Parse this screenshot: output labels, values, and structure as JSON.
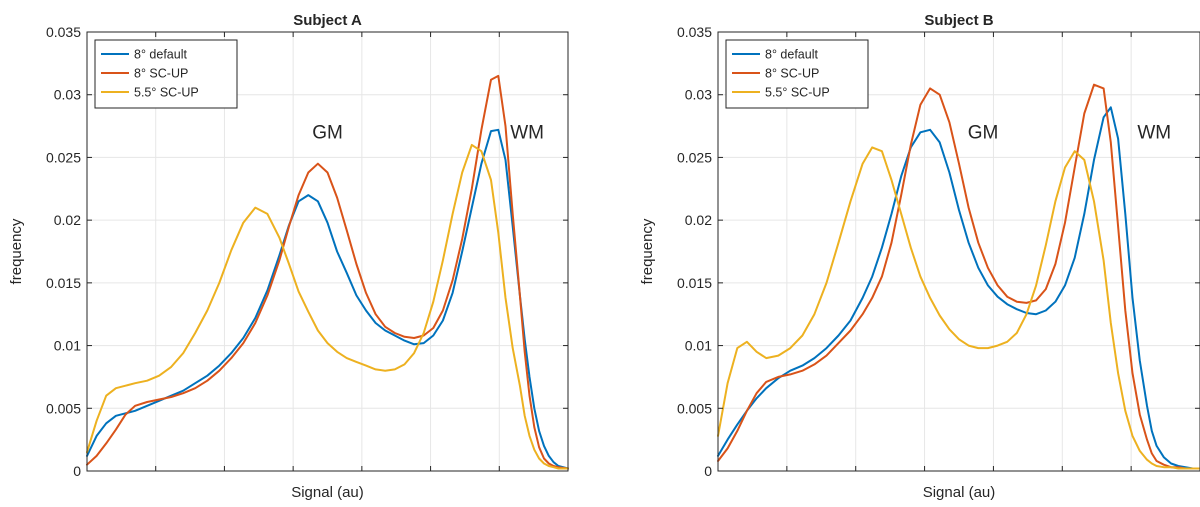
{
  "chart_data": [
    {
      "type": "line",
      "title": "Subject A",
      "xlabel": "Signal (au)",
      "ylabel": "frequency",
      "ylim": [
        0,
        0.035
      ],
      "xlim": [
        0,
        1
      ],
      "yticks": [
        "0",
        "0.005",
        "0.01",
        "0.015",
        "0.02",
        "0.025",
        "0.03",
        "0.035"
      ],
      "x_tick_labels": "none",
      "grid": true,
      "legend_placement": "top-left",
      "annotations": [
        {
          "text": "GM",
          "x": 0.5,
          "y": 0.0265
        },
        {
          "text": "WM",
          "x": 0.915,
          "y": 0.0265
        }
      ],
      "x": [
        0,
        0.02,
        0.04,
        0.06,
        0.08,
        0.1,
        0.125,
        0.15,
        0.175,
        0.2,
        0.225,
        0.25,
        0.275,
        0.3,
        0.325,
        0.35,
        0.375,
        0.4,
        0.42,
        0.44,
        0.46,
        0.48,
        0.5,
        0.52,
        0.54,
        0.56,
        0.58,
        0.6,
        0.62,
        0.64,
        0.66,
        0.68,
        0.7,
        0.72,
        0.74,
        0.76,
        0.78,
        0.8,
        0.82,
        0.84,
        0.855,
        0.87,
        0.885,
        0.9,
        0.91,
        0.92,
        0.93,
        0.94,
        0.95,
        0.96,
        0.97,
        0.98,
        1.0
      ],
      "series": [
        {
          "name": "8° default",
          "color": "#0072BD",
          "values": [
            0.0012,
            0.0028,
            0.0038,
            0.0044,
            0.0046,
            0.0048,
            0.0052,
            0.0056,
            0.006,
            0.0064,
            0.007,
            0.0076,
            0.0084,
            0.0094,
            0.0106,
            0.0122,
            0.0144,
            0.0172,
            0.0196,
            0.0215,
            0.022,
            0.0215,
            0.0198,
            0.0175,
            0.0158,
            0.014,
            0.0128,
            0.0118,
            0.0112,
            0.0108,
            0.0104,
            0.0101,
            0.0102,
            0.0108,
            0.012,
            0.0142,
            0.0175,
            0.021,
            0.0245,
            0.0271,
            0.0272,
            0.0248,
            0.0195,
            0.014,
            0.0105,
            0.0075,
            0.005,
            0.0032,
            0.002,
            0.0012,
            0.0007,
            0.0004,
            0.0002
          ]
        },
        {
          "name": "8° SC-UP",
          "color": "#D95319",
          "values": [
            0.0005,
            0.0012,
            0.0022,
            0.0033,
            0.0045,
            0.0052,
            0.0055,
            0.0057,
            0.0059,
            0.0062,
            0.0066,
            0.0072,
            0.008,
            0.009,
            0.0102,
            0.0118,
            0.014,
            0.0168,
            0.0195,
            0.022,
            0.0238,
            0.0245,
            0.0238,
            0.0218,
            0.0192,
            0.0165,
            0.0142,
            0.0125,
            0.0115,
            0.011,
            0.0107,
            0.0106,
            0.0108,
            0.0114,
            0.0128,
            0.0152,
            0.0185,
            0.0225,
            0.0272,
            0.0312,
            0.0315,
            0.0275,
            0.0205,
            0.014,
            0.0095,
            0.006,
            0.0035,
            0.0019,
            0.001,
            0.0006,
            0.0004,
            0.0003,
            0.0002
          ]
        },
        {
          "name": "5.5° SC-UP",
          "color": "#EDB120",
          "values": [
            0.0015,
            0.004,
            0.006,
            0.0066,
            0.0068,
            0.007,
            0.0072,
            0.0076,
            0.0083,
            0.0094,
            0.011,
            0.0128,
            0.015,
            0.0176,
            0.0198,
            0.021,
            0.0205,
            0.0186,
            0.0165,
            0.0143,
            0.0127,
            0.0112,
            0.0102,
            0.0095,
            0.009,
            0.0087,
            0.0084,
            0.0081,
            0.008,
            0.0081,
            0.0085,
            0.0094,
            0.011,
            0.0135,
            0.0168,
            0.0205,
            0.0238,
            0.026,
            0.0255,
            0.0232,
            0.019,
            0.0138,
            0.0098,
            0.0068,
            0.0044,
            0.0028,
            0.0017,
            0.001,
            0.0006,
            0.0004,
            0.0003,
            0.0002,
            0.0002
          ]
        }
      ]
    },
    {
      "type": "line",
      "title": "Subject B",
      "xlabel": "Signal (au)",
      "ylabel": "frequency",
      "ylim": [
        0,
        0.035
      ],
      "xlim": [
        0,
        1
      ],
      "yticks": [
        "0",
        "0.005",
        "0.01",
        "0.015",
        "0.02",
        "0.025",
        "0.03",
        "0.035"
      ],
      "x_tick_labels": "none",
      "grid": true,
      "legend_placement": "top-left",
      "annotations": [
        {
          "text": "GM",
          "x": 0.55,
          "y": 0.0265
        },
        {
          "text": "WM",
          "x": 0.905,
          "y": 0.0265
        }
      ],
      "x": [
        0,
        0.02,
        0.04,
        0.06,
        0.08,
        0.1,
        0.125,
        0.15,
        0.175,
        0.2,
        0.225,
        0.25,
        0.275,
        0.3,
        0.32,
        0.34,
        0.36,
        0.38,
        0.4,
        0.42,
        0.44,
        0.46,
        0.48,
        0.5,
        0.52,
        0.54,
        0.56,
        0.58,
        0.6,
        0.62,
        0.64,
        0.66,
        0.68,
        0.7,
        0.72,
        0.74,
        0.76,
        0.78,
        0.8,
        0.815,
        0.83,
        0.845,
        0.86,
        0.875,
        0.89,
        0.9,
        0.91,
        0.925,
        0.94,
        0.955,
        0.97,
        0.985,
        1.0
      ],
      "series": [
        {
          "name": "8° default",
          "color": "#0072BD",
          "values": [
            0.0012,
            0.0025,
            0.0037,
            0.0048,
            0.0058,
            0.0066,
            0.0074,
            0.008,
            0.0084,
            0.009,
            0.0098,
            0.0108,
            0.012,
            0.0138,
            0.0155,
            0.0178,
            0.0205,
            0.0235,
            0.0258,
            0.027,
            0.0272,
            0.0262,
            0.0238,
            0.0208,
            0.0182,
            0.0162,
            0.0148,
            0.0139,
            0.0133,
            0.0129,
            0.0126,
            0.0125,
            0.0128,
            0.0135,
            0.0148,
            0.017,
            0.0205,
            0.0248,
            0.0282,
            0.029,
            0.0265,
            0.0205,
            0.0138,
            0.0088,
            0.0052,
            0.0032,
            0.002,
            0.0011,
            0.0006,
            0.0004,
            0.0003,
            0.0002,
            0.0002
          ]
        },
        {
          "name": "8° SC-UP",
          "color": "#D95319",
          "values": [
            0.0008,
            0.0018,
            0.0032,
            0.0048,
            0.0062,
            0.0071,
            0.0075,
            0.0077,
            0.008,
            0.0085,
            0.0092,
            0.0102,
            0.0112,
            0.0125,
            0.0138,
            0.0155,
            0.0182,
            0.022,
            0.026,
            0.0292,
            0.0305,
            0.03,
            0.0278,
            0.0245,
            0.021,
            0.0182,
            0.0162,
            0.0148,
            0.0139,
            0.0135,
            0.0134,
            0.0136,
            0.0145,
            0.0165,
            0.0198,
            0.0242,
            0.0285,
            0.0308,
            0.0305,
            0.0262,
            0.0195,
            0.0128,
            0.0078,
            0.0045,
            0.0025,
            0.0014,
            0.0008,
            0.0005,
            0.0003,
            0.0003,
            0.0002,
            0.0002,
            0.0002
          ]
        },
        {
          "name": "5.5° SC-UP",
          "color": "#EDB120",
          "values": [
            0.0028,
            0.007,
            0.0098,
            0.0103,
            0.0095,
            0.009,
            0.0092,
            0.0098,
            0.0108,
            0.0125,
            0.015,
            0.0182,
            0.0215,
            0.0245,
            0.0258,
            0.0255,
            0.0232,
            0.0205,
            0.0178,
            0.0155,
            0.0138,
            0.0124,
            0.0113,
            0.0105,
            0.01,
            0.0098,
            0.0098,
            0.01,
            0.0103,
            0.011,
            0.0125,
            0.0148,
            0.018,
            0.0215,
            0.0242,
            0.0255,
            0.0248,
            0.0215,
            0.0168,
            0.0118,
            0.0078,
            0.0048,
            0.0028,
            0.0016,
            0.0009,
            0.0006,
            0.0004,
            0.0003,
            0.0003,
            0.0002,
            0.0002,
            0.0002,
            0.0002
          ]
        }
      ]
    }
  ]
}
